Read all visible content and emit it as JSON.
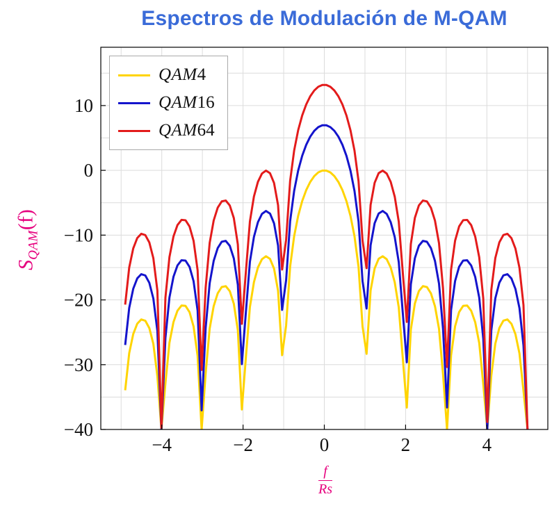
{
  "title": "Espectros de Modulación de M-QAM",
  "colors": {
    "title": "#3a6bd8",
    "axis_label": "#e6007e",
    "grid": "#dcdcdc",
    "frame": "#000000",
    "tick_text": "#111111",
    "legend_border": "#a9a9a9"
  },
  "axis": {
    "ylabel_main": "S",
    "ylabel_sub": "QAM",
    "ylabel_suffix": "(f)",
    "xlabel_numerator": "f",
    "xlabel_denominator": "Rs"
  },
  "chart_data": {
    "type": "line",
    "title": "Espectros de Modulación de M-QAM",
    "xlabel": "f/Rs",
    "ylabel": "S_QAM(f) [dB]",
    "xlim": [
      -5.5,
      5.5
    ],
    "ylim": [
      -40,
      19
    ],
    "x_ticks": [
      -4,
      -2,
      0,
      2,
      4
    ],
    "y_ticks": [
      -40,
      -30,
      -20,
      -10,
      0,
      10
    ],
    "x_grid": [
      -5,
      -4,
      -3,
      -2,
      -1,
      0,
      1,
      2,
      3,
      4,
      5
    ],
    "y_grid": [
      -40,
      -35,
      -30,
      -25,
      -20,
      -15,
      -10,
      -5,
      0,
      5,
      10,
      15
    ],
    "grid": true,
    "legend_position": "top-left",
    "formula": "S(f) = offset_db + 10*log10(sinc^2(f/Rs)), sinc(u) = sin(pi*u)/(pi*u), clipped at -40 dB",
    "sampling": {
      "x_start": -4.9,
      "x_end": 5.0,
      "samples": 101
    },
    "series": [
      {
        "name": "QAM4",
        "label_prefix": "QAM",
        "label_number": "4",
        "color": "#ffd400",
        "offset_db": 0,
        "peak_db": 0,
        "first_sidelobe_db": -13.3
      },
      {
        "name": "QAM16",
        "label_prefix": "QAM",
        "label_number": "16",
        "color": "#1414cc",
        "offset_db": 6.99,
        "peak_db": 6.99,
        "first_sidelobe_db": -6.3
      },
      {
        "name": "QAM64",
        "label_prefix": "QAM",
        "label_number": "64",
        "color": "#e31b1b",
        "offset_db": 13.22,
        "peak_db": 13.22,
        "first_sidelobe_db": -0.1
      }
    ]
  }
}
